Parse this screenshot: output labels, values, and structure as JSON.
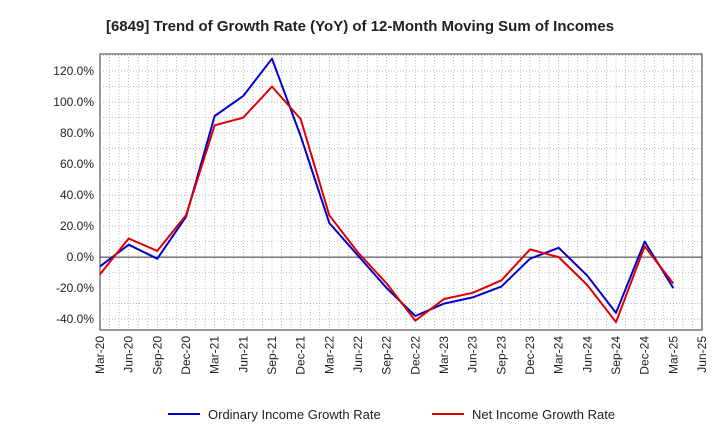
{
  "chart_data": {
    "type": "line",
    "title": "[6849]  Trend of Growth Rate (YoY) of 12-Month Moving Sum of Incomes",
    "xlabel": "",
    "ylabel": "",
    "x_ticks": [
      "Mar-20",
      "Jun-20",
      "Sep-20",
      "Dec-20",
      "Mar-21",
      "Jun-21",
      "Sep-21",
      "Dec-21",
      "Mar-22",
      "Jun-22",
      "Sep-22",
      "Dec-22",
      "Mar-23",
      "Jun-23",
      "Sep-23",
      "Dec-23",
      "Mar-24",
      "Jun-24",
      "Sep-24",
      "Dec-24",
      "Mar-25",
      "Jun-25"
    ],
    "y_ticks": [
      "120.0%",
      "100.0%",
      "80.0%",
      "60.0%",
      "40.0%",
      "20.0%",
      "0.0%",
      "-20.0%",
      "-40.0%"
    ],
    "y_tick_values": [
      120,
      100,
      80,
      60,
      40,
      20,
      0,
      -20,
      -40
    ],
    "ylim": [
      -47,
      131
    ],
    "x_range_months": [
      "Mar-20",
      "Jun-25"
    ],
    "grid": true,
    "legend_position": "bottom",
    "x": [
      "Mar-20",
      "Apr-20",
      "May-20",
      "Jun-20",
      "Jul-20",
      "Aug-20",
      "Sep-20",
      "Oct-20",
      "Nov-20",
      "Dec-20",
      "Jan-21",
      "Feb-21",
      "Mar-21",
      "Apr-21",
      "May-21",
      "Jun-21",
      "Jul-21",
      "Aug-21",
      "Sep-21",
      "Oct-21",
      "Nov-21",
      "Dec-21",
      "Jan-22",
      "Feb-22",
      "Mar-22",
      "Apr-22",
      "May-22",
      "Jun-22",
      "Jul-22",
      "Aug-22",
      "Sep-22",
      "Oct-22",
      "Nov-22",
      "Dec-22",
      "Jan-23",
      "Feb-23",
      "Mar-23",
      "Apr-23",
      "May-23",
      "Jun-23",
      "Jul-23",
      "Aug-23",
      "Sep-23",
      "Oct-23",
      "Nov-23",
      "Dec-23",
      "Jan-24",
      "Feb-24",
      "Mar-24",
      "Apr-24",
      "May-24",
      "Jun-24",
      "Jul-24",
      "Aug-24",
      "Sep-24",
      "Oct-24",
      "Nov-24",
      "Dec-24",
      "Jan-25",
      "Feb-25",
      "Mar-25"
    ],
    "series": [
      {
        "name": "Ordinary Income Growth Rate",
        "color": "#0000cc",
        "values": [
          -6,
          null,
          null,
          8,
          null,
          null,
          -1,
          null,
          null,
          26,
          null,
          null,
          91,
          null,
          null,
          104,
          null,
          null,
          128,
          null,
          null,
          78,
          null,
          null,
          22,
          null,
          null,
          1,
          null,
          null,
          -20,
          null,
          null,
          -38,
          null,
          null,
          -30,
          null,
          null,
          -26,
          null,
          null,
          -19,
          null,
          null,
          -1,
          null,
          null,
          6,
          null,
          null,
          -12,
          null,
          null,
          -36,
          null,
          null,
          10,
          null,
          null,
          -20
        ]
      },
      {
        "name": "Net Income Growth Rate",
        "color": "#dd0000",
        "values": [
          -11,
          null,
          null,
          12,
          null,
          null,
          4,
          null,
          null,
          27,
          null,
          null,
          85,
          null,
          null,
          90,
          null,
          null,
          110,
          null,
          null,
          89,
          null,
          null,
          27,
          null,
          null,
          3,
          null,
          null,
          -17,
          null,
          null,
          -41,
          null,
          null,
          -27,
          null,
          null,
          -23,
          null,
          null,
          -15,
          null,
          null,
          5,
          null,
          null,
          0,
          null,
          null,
          -18,
          null,
          null,
          -42,
          null,
          null,
          7,
          null,
          null,
          -17
        ]
      }
    ],
    "legend": [
      "Ordinary Income Growth Rate",
      "Net Income Growth Rate"
    ]
  }
}
